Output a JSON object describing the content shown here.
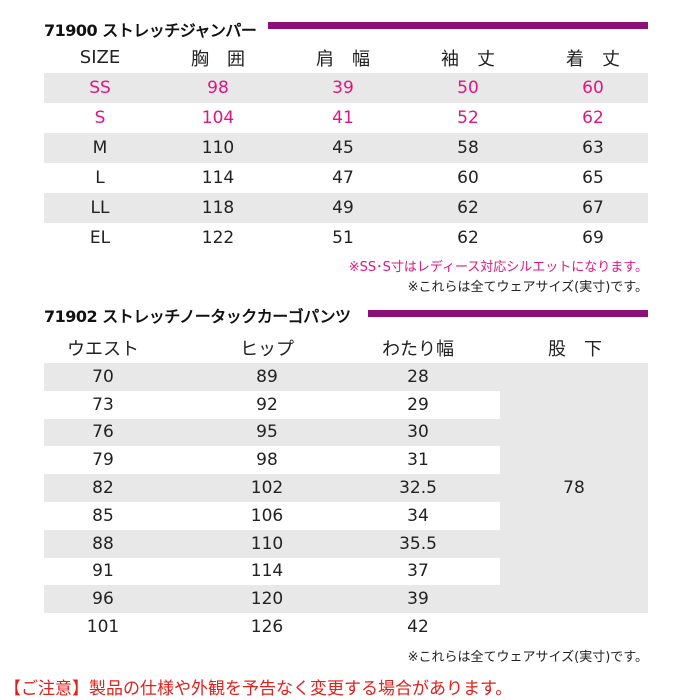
{
  "jumper": {
    "title": "71900 ストレッチジャンパー",
    "headers": [
      "SIZE",
      "胸　囲",
      "肩　幅",
      "袖　丈",
      "着　丈"
    ],
    "rows": [
      [
        "SS",
        "98",
        "39",
        "50",
        "60"
      ],
      [
        "S",
        "104",
        "41",
        "52",
        "62"
      ],
      [
        "M",
        "110",
        "45",
        "58",
        "63"
      ],
      [
        "L",
        "114",
        "47",
        "60",
        "65"
      ],
      [
        "LL",
        "118",
        "49",
        "62",
        "67"
      ],
      [
        "EL",
        "122",
        "51",
        "62",
        "69"
      ]
    ],
    "note_ladies": "※SS･S寸はレディース対応シルエットになります。",
    "note_actual": "※これらは全てウェアサイズ(実寸)です。"
  },
  "pants": {
    "title": "71902 ストレッチノータックカーゴパンツ",
    "headers": [
      "ウエスト",
      "ヒップ",
      "わたり幅",
      "股　下"
    ],
    "rows": [
      [
        "70",
        "89",
        "28"
      ],
      [
        "73",
        "92",
        "29"
      ],
      [
        "76",
        "95",
        "30"
      ],
      [
        "79",
        "98",
        "31"
      ],
      [
        "82",
        "102",
        "32.5"
      ],
      [
        "85",
        "106",
        "34"
      ],
      [
        "88",
        "110",
        "35.5"
      ],
      [
        "91",
        "114",
        "37"
      ],
      [
        "96",
        "120",
        "39"
      ],
      [
        "101",
        "126",
        "42"
      ]
    ],
    "inseam": "78",
    "note_actual": "※これらは全てウェアサイズ(実寸)です。"
  },
  "notice": "【ご注意】製品の仕様や外観を予告なく変更する場合があります。",
  "colors": {
    "accent": "#8c1077",
    "pink": "#e0157f",
    "red": "#e0201b",
    "row_gray": "#e8e8e8"
  }
}
